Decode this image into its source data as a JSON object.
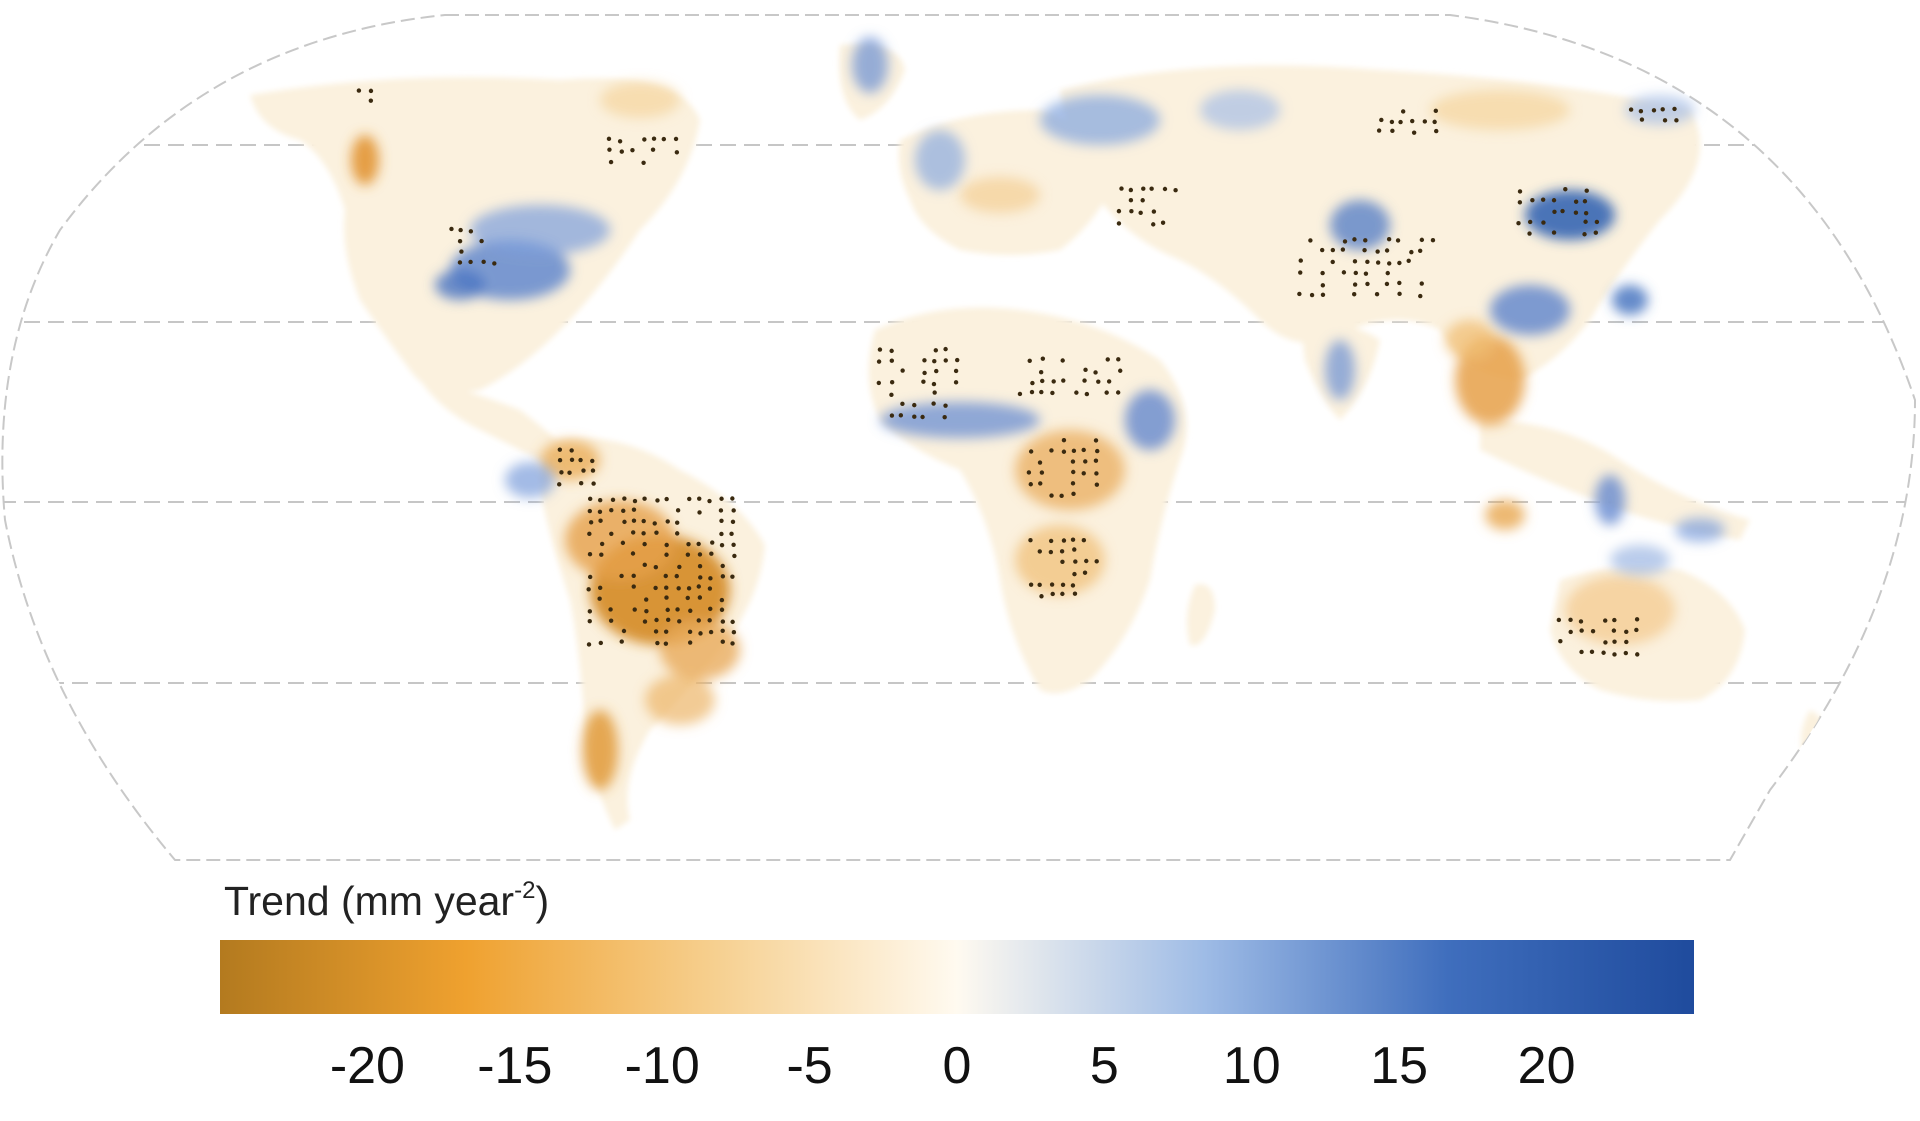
{
  "colorbar": {
    "title_main": "Trend (mm year",
    "title_sup": "-2",
    "title_close": ")",
    "ticks": [
      -20,
      -15,
      -10,
      -5,
      0,
      5,
      10,
      15,
      20
    ],
    "min": -25,
    "max": 25,
    "colors": [
      "#b37a1f",
      "#efa12f",
      "#f6cf8e",
      "#fffaf0",
      "#9fbce6",
      "#3f6ebd",
      "#1f4b9d"
    ]
  },
  "map": {
    "projection": "Robinson",
    "stippling": "significant trend",
    "ocean_color": "#ffffff",
    "grid_color": "#bdbdbd"
  }
}
